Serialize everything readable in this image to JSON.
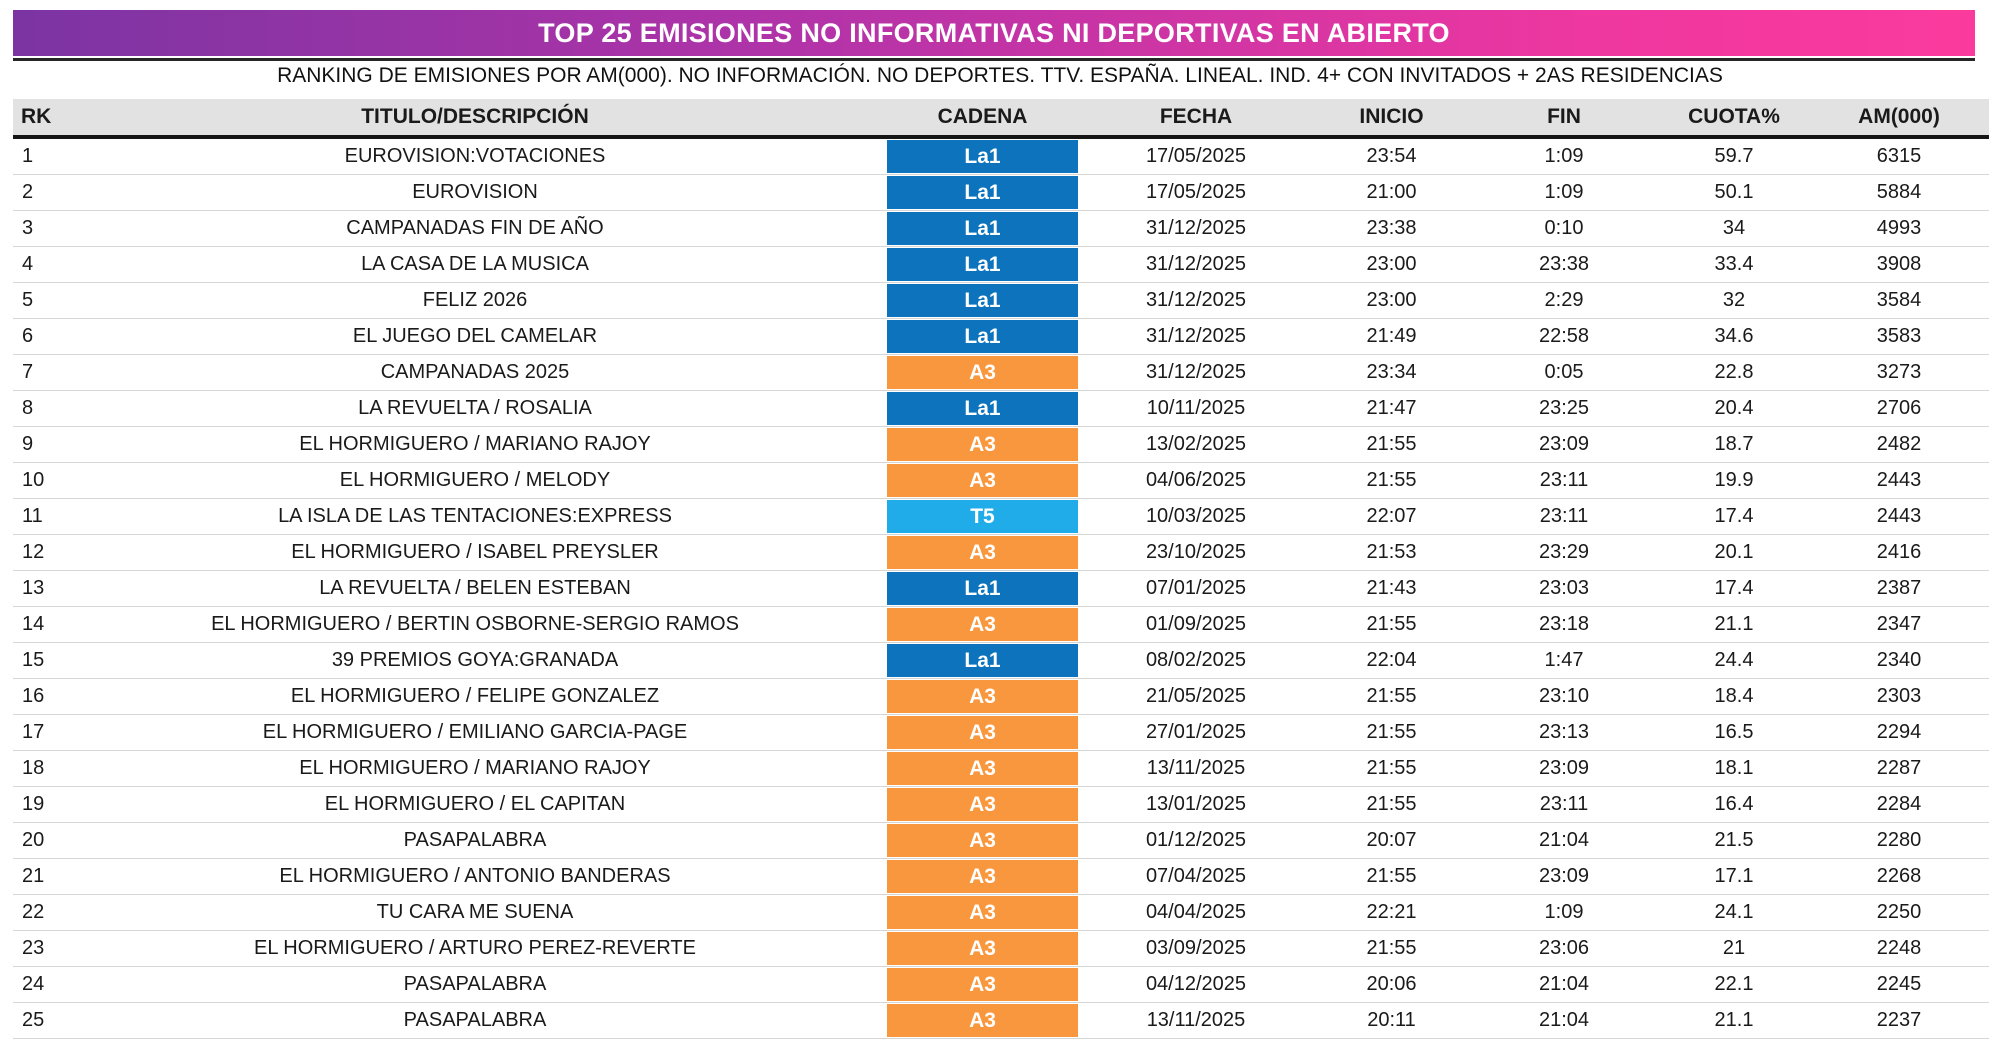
{
  "header": {
    "title": "TOP 25 EMISIONES NO INFORMATIVAS NI DEPORTIVAS EN ABIERTO",
    "subtitle": "RANKING DE EMISIONES POR AM(000). NO INFORMACIÓN. NO DEPORTES. TTV. ESPAÑA. LINEAL. IND. 4+ CON INVITADOS + 2AS RESIDENCIAS",
    "gradient_left": "#7C34A3",
    "gradient_right": "#FB3A9D",
    "title_text_color": "#FFFFFF"
  },
  "channel_colors": {
    "La1": "#0D73BC",
    "A3": "#F8973D",
    "T5": "#1FACE8"
  },
  "chart_data": {
    "type": "table",
    "title": "TOP 25 EMISIONES NO INFORMATIVAS NI DEPORTIVAS EN ABIERTO",
    "subtitle": "RANKING DE EMISIONES POR AM(000). NO INFORMACIÓN. NO DEPORTES. TTV. ESPAÑA. LINEAL. IND. 4+ CON INVITADOS + 2AS RESIDENCIAS",
    "columns": [
      "RK",
      "TITULO/DESCRIPCIÓN",
      "CADENA",
      "FECHA",
      "INICIO",
      "FIN",
      "CUOTA%",
      "AM(000)"
    ],
    "rows": [
      [
        1,
        "EUROVISION:VOTACIONES",
        "La1",
        "17/05/2025",
        "23:54",
        "1:09",
        59.7,
        6315
      ],
      [
        2,
        "EUROVISION",
        "La1",
        "17/05/2025",
        "21:00",
        "1:09",
        50.1,
        5884
      ],
      [
        3,
        "CAMPANADAS FIN DE AÑO",
        "La1",
        "31/12/2025",
        "23:38",
        "0:10",
        34,
        4993
      ],
      [
        4,
        "LA CASA DE LA MUSICA",
        "La1",
        "31/12/2025",
        "23:00",
        "23:38",
        33.4,
        3908
      ],
      [
        5,
        "FELIZ 2026",
        "La1",
        "31/12/2025",
        "23:00",
        "2:29",
        32,
        3584
      ],
      [
        6,
        "EL JUEGO DEL CAMELAR",
        "La1",
        "31/12/2025",
        "21:49",
        "22:58",
        34.6,
        3583
      ],
      [
        7,
        "CAMPANADAS 2025",
        "A3",
        "31/12/2025",
        "23:34",
        "0:05",
        22.8,
        3273
      ],
      [
        8,
        "LA REVUELTA / ROSALIA",
        "La1",
        "10/11/2025",
        "21:47",
        "23:25",
        20.4,
        2706
      ],
      [
        9,
        "EL HORMIGUERO / MARIANO RAJOY",
        "A3",
        "13/02/2025",
        "21:55",
        "23:09",
        18.7,
        2482
      ],
      [
        10,
        "EL HORMIGUERO / MELODY",
        "A3",
        "04/06/2025",
        "21:55",
        "23:11",
        19.9,
        2443
      ],
      [
        11,
        "LA ISLA DE LAS TENTACIONES:EXPRESS",
        "T5",
        "10/03/2025",
        "22:07",
        "23:11",
        17.4,
        2443
      ],
      [
        12,
        "EL HORMIGUERO / ISABEL PREYSLER",
        "A3",
        "23/10/2025",
        "21:53",
        "23:29",
        20.1,
        2416
      ],
      [
        13,
        "LA REVUELTA / BELEN ESTEBAN",
        "La1",
        "07/01/2025",
        "21:43",
        "23:03",
        17.4,
        2387
      ],
      [
        14,
        "EL HORMIGUERO / BERTIN OSBORNE-SERGIO RAMOS",
        "A3",
        "01/09/2025",
        "21:55",
        "23:18",
        21.1,
        2347
      ],
      [
        15,
        "39 PREMIOS GOYA:GRANADA",
        "La1",
        "08/02/2025",
        "22:04",
        "1:47",
        24.4,
        2340
      ],
      [
        16,
        "EL HORMIGUERO / FELIPE GONZALEZ",
        "A3",
        "21/05/2025",
        "21:55",
        "23:10",
        18.4,
        2303
      ],
      [
        17,
        "EL HORMIGUERO / EMILIANO GARCIA-PAGE",
        "A3",
        "27/01/2025",
        "21:55",
        "23:13",
        16.5,
        2294
      ],
      [
        18,
        "EL HORMIGUERO / MARIANO RAJOY",
        "A3",
        "13/11/2025",
        "21:55",
        "23:09",
        18.1,
        2287
      ],
      [
        19,
        "EL HORMIGUERO / EL CAPITAN",
        "A3",
        "13/01/2025",
        "21:55",
        "23:11",
        16.4,
        2284
      ],
      [
        20,
        "PASAPALABRA",
        "A3",
        "01/12/2025",
        "20:07",
        "21:04",
        21.5,
        2280
      ],
      [
        21,
        "EL HORMIGUERO / ANTONIO BANDERAS",
        "A3",
        "07/04/2025",
        "21:55",
        "23:09",
        17.1,
        2268
      ],
      [
        22,
        "TU CARA ME SUENA",
        "A3",
        "04/04/2025",
        "22:21",
        "1:09",
        24.1,
        2250
      ],
      [
        23,
        "EL HORMIGUERO / ARTURO PEREZ-REVERTE",
        "A3",
        "03/09/2025",
        "21:55",
        "23:06",
        21,
        2248
      ],
      [
        24,
        "PASAPALABRA",
        "A3",
        "04/12/2025",
        "20:06",
        "21:04",
        22.1,
        2245
      ],
      [
        25,
        "PASAPALABRA",
        "A3",
        "13/11/2025",
        "20:11",
        "21:04",
        21.1,
        2237
      ]
    ]
  }
}
